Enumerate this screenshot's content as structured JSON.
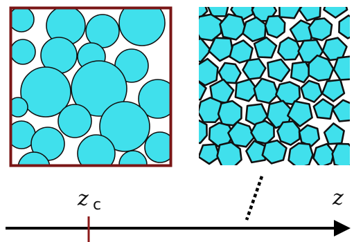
{
  "labels": {
    "zc_base": "z",
    "zc_sub": "c",
    "z_axis": "z"
  },
  "colors": {
    "bubble_fill": "#40e0ec",
    "edge": "#111111",
    "frame": "#7a1616",
    "tick": "#8b1a1a",
    "axis": "#000000"
  },
  "panels": {
    "left": "circular-bubbles-at-jamming",
    "right": "polygonal-foam-cells"
  }
}
